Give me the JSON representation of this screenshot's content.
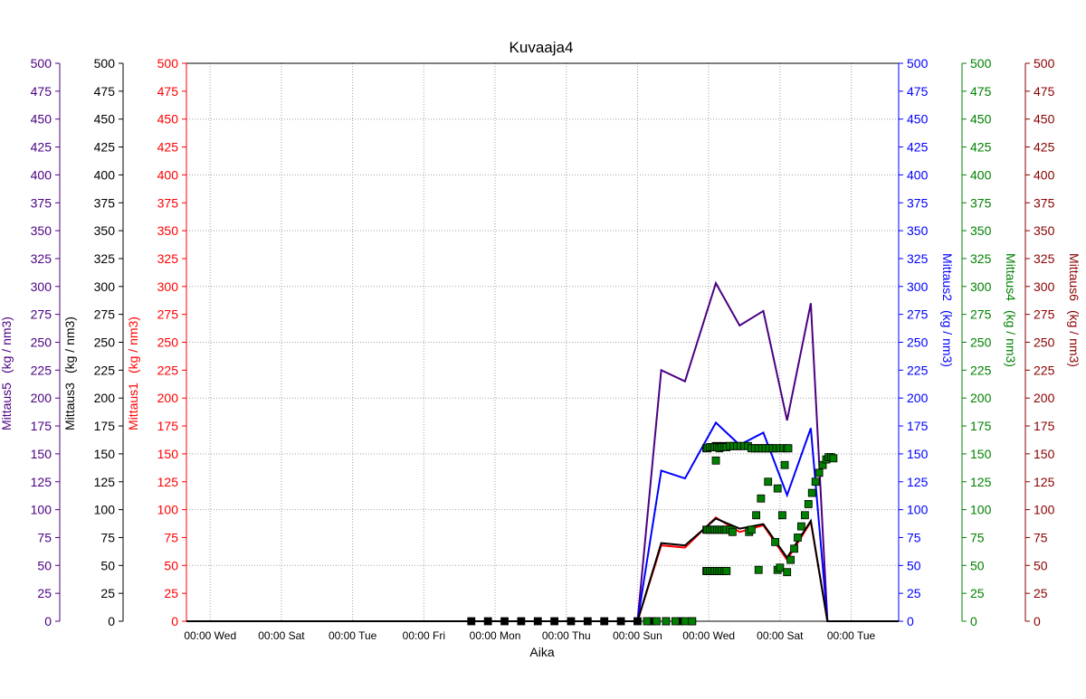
{
  "chart_data": {
    "type": "line",
    "title": "Kuvaaja4",
    "xlabel": "Aika",
    "x_ticks": [
      "00:00 Wed",
      "00:00 Sat",
      "00:00 Tue",
      "00:00 Fri",
      "00:00 Mon",
      "00:00 Thu",
      "00:00 Sun",
      "00:00 Wed",
      "00:00 Sat",
      "00:00 Tue"
    ],
    "x_tick_positions": [
      0,
      3,
      6,
      9,
      12,
      15,
      18,
      21,
      24,
      27
    ],
    "xlim": [
      -1,
      29
    ],
    "ylim": [
      0,
      500
    ],
    "y_ticks": [
      0,
      25,
      50,
      75,
      100,
      125,
      150,
      175,
      200,
      225,
      250,
      275,
      300,
      325,
      350,
      375,
      400,
      425,
      450,
      475,
      500
    ],
    "grid": true,
    "axes": [
      {
        "id": "m5",
        "label": "Mittaus5",
        "unit": "(kg / nm3)",
        "side": "left",
        "color": "#4B0082"
      },
      {
        "id": "m3",
        "label": "Mittaus3",
        "unit": "(kg / nm3)",
        "side": "left",
        "color": "#000000"
      },
      {
        "id": "m1",
        "label": "Mittaus1",
        "unit": "(kg / nm3)",
        "side": "left",
        "color": "#FF0000"
      },
      {
        "id": "m2",
        "label": "Mittaus2",
        "unit": "(kg / nm3)",
        "side": "right",
        "color": "#0000FF"
      },
      {
        "id": "m4",
        "label": "Mittaus4",
        "unit": "(kg / nm3)",
        "side": "right",
        "color": "#008000"
      },
      {
        "id": "m6",
        "label": "Mittaus6",
        "unit": "(kg / nm3)",
        "side": "right",
        "color": "#8B0000"
      }
    ],
    "series": [
      {
        "id": "mittaus5",
        "name": "Mittaus5",
        "kind": "line",
        "color": "#4B0082",
        "x": [
          -1,
          18,
          19,
          20,
          21.3,
          22.3,
          23.3,
          24.3,
          25.3,
          26,
          29
        ],
        "y": [
          0,
          0,
          225,
          215,
          303,
          265,
          278,
          180,
          285,
          0,
          0
        ]
      },
      {
        "id": "mittaus2",
        "name": "Mittaus2",
        "kind": "line",
        "color": "#0000FF",
        "x": [
          -1,
          18,
          19,
          20,
          21.3,
          22.3,
          23.3,
          24.3,
          25.3,
          26,
          29
        ],
        "y": [
          0,
          0,
          135,
          128,
          178,
          158,
          169,
          113,
          173,
          0,
          0
        ]
      },
      {
        "id": "mittaus1",
        "name": "Mittaus1",
        "kind": "line",
        "color": "#FF0000",
        "x": [
          -1,
          18,
          19,
          20,
          21.3,
          22.3,
          23.3,
          24.3,
          25.3,
          26,
          29
        ],
        "y": [
          0,
          0,
          68,
          66,
          93,
          80,
          86,
          55,
          89,
          0,
          0
        ]
      },
      {
        "id": "mittaus3",
        "name": "Mittaus3",
        "kind": "line",
        "color": "#000000",
        "x": [
          -1,
          18,
          19,
          20,
          21.3,
          22.3,
          23.3,
          24.3,
          25.3,
          26,
          29
        ],
        "y": [
          0,
          0,
          70,
          68,
          92,
          83,
          87,
          57,
          90,
          0,
          0
        ]
      },
      {
        "id": "mittaus3_points",
        "name": "Mittaus3",
        "kind": "points",
        "color": "#000000",
        "x": [
          11,
          11.7,
          12.4,
          13.1,
          13.8,
          14.5,
          15.2,
          15.9,
          16.6,
          17.3,
          18,
          18.6,
          19.2,
          19.8,
          20.3,
          21.3,
          21.6,
          21.9,
          22.2,
          22.9,
          23.1,
          23.3,
          23.5,
          23.7
        ],
        "y": [
          0,
          0,
          0,
          0,
          0,
          0,
          0,
          0,
          0,
          0,
          0,
          0,
          0,
          0,
          0,
          157,
          157,
          157,
          157,
          155,
          155,
          155,
          155,
          155
        ]
      },
      {
        "id": "mittaus4_points",
        "name": "Mittaus4",
        "kind": "points",
        "color": "#008000",
        "x": [
          18.4,
          18.8,
          19.2,
          19.6,
          20.0,
          20.3,
          20.9,
          20.95,
          21.05,
          21.15,
          21.25,
          21.35,
          21.45,
          21.55,
          21.65,
          21.75,
          20.9,
          20.95,
          21.05,
          21.15,
          21.25,
          21.35,
          21.45,
          21.55,
          21.65,
          21.75,
          20.9,
          20.95,
          21.05,
          21.15,
          21.25,
          21.35,
          21.45,
          21.55,
          21.65,
          21.75,
          21.9,
          22.05,
          22.2,
          22.35,
          22.5,
          22.65,
          22.8,
          22.95,
          23.1,
          23.25,
          23.4,
          23.55,
          23.7,
          23.85,
          24.0,
          24.15,
          22.7,
          23.0,
          23.2,
          23.5,
          24.2,
          24.3,
          24.35,
          21.3,
          21.9,
          22.0,
          22.8,
          23.8,
          23.1,
          23.9,
          24.0,
          23.9,
          24.1,
          24.3,
          24.45,
          24.6,
          24.75,
          24.9,
          25.05,
          25.2,
          25.35,
          25.5,
          25.65,
          25.8,
          25.95,
          26.05,
          26.15,
          26.25
        ],
        "y": [
          0,
          0,
          0,
          0,
          0,
          0,
          155,
          155,
          156,
          156,
          156,
          156,
          155,
          156,
          156,
          156,
          82,
          82,
          82,
          82,
          82,
          82,
          82,
          82,
          82,
          82,
          45,
          45,
          45,
          45,
          45,
          45,
          45,
          45,
          45,
          45,
          157,
          157,
          157,
          157,
          157,
          157,
          155,
          155,
          155,
          155,
          155,
          155,
          155,
          155,
          155,
          155,
          80,
          95,
          110,
          125,
          140,
          155,
          155,
          144,
          82,
          80,
          82,
          71,
          46,
          46,
          48,
          119,
          95,
          44,
          55,
          65,
          75,
          85,
          95,
          105,
          115,
          125,
          133,
          140,
          145,
          147,
          147,
          146
        ]
      }
    ]
  }
}
